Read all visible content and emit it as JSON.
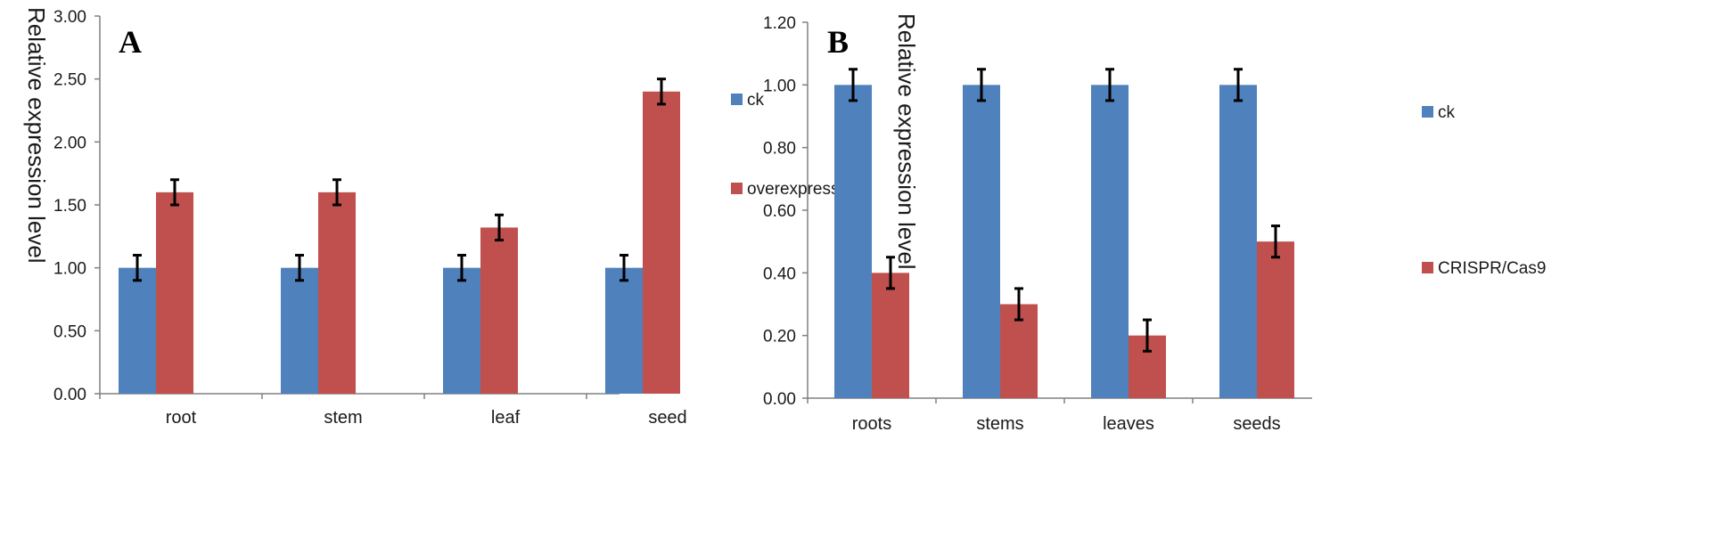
{
  "chart_data": [
    {
      "type": "bar",
      "panel_label": "A",
      "ylabel": "Relative expression level",
      "ylim": [
        0,
        3
      ],
      "ytick_labels": [
        "0.00",
        "0.50",
        "1.00",
        "1.50",
        "2.00",
        "2.50",
        "3.00"
      ],
      "categories": [
        "root",
        "stem",
        "leaf",
        "seed"
      ],
      "series": [
        {
          "name": "ck",
          "color": "#4f81bd",
          "values": [
            1.0,
            1.0,
            1.0,
            1.0
          ],
          "errors": [
            0.1,
            0.1,
            0.1,
            0.1
          ]
        },
        {
          "name": "overexpression",
          "color": "#c0504d",
          "values": [
            1.6,
            1.6,
            1.32,
            2.4
          ],
          "errors": [
            0.1,
            0.1,
            0.1,
            0.1
          ]
        }
      ],
      "legend_position": "right"
    },
    {
      "type": "bar",
      "panel_label": "B",
      "ylabel": "Relative expression level",
      "ylim": [
        0,
        1.2
      ],
      "ytick_labels": [
        "0.00",
        "0.20",
        "0.40",
        "0.60",
        "0.80",
        "1.00",
        "1.20"
      ],
      "categories": [
        "roots",
        "stems",
        "leaves",
        "seeds"
      ],
      "series": [
        {
          "name": "ck",
          "color": "#4f81bd",
          "values": [
            1.0,
            1.0,
            1.0,
            1.0
          ],
          "errors": [
            0.05,
            0.05,
            0.05,
            0.05
          ]
        },
        {
          "name": "CRISPR/Cas9",
          "color": "#c0504d",
          "values": [
            0.4,
            0.3,
            0.2,
            0.5
          ],
          "errors": [
            0.05,
            0.05,
            0.05,
            0.05
          ]
        }
      ],
      "legend_position": "right"
    }
  ]
}
